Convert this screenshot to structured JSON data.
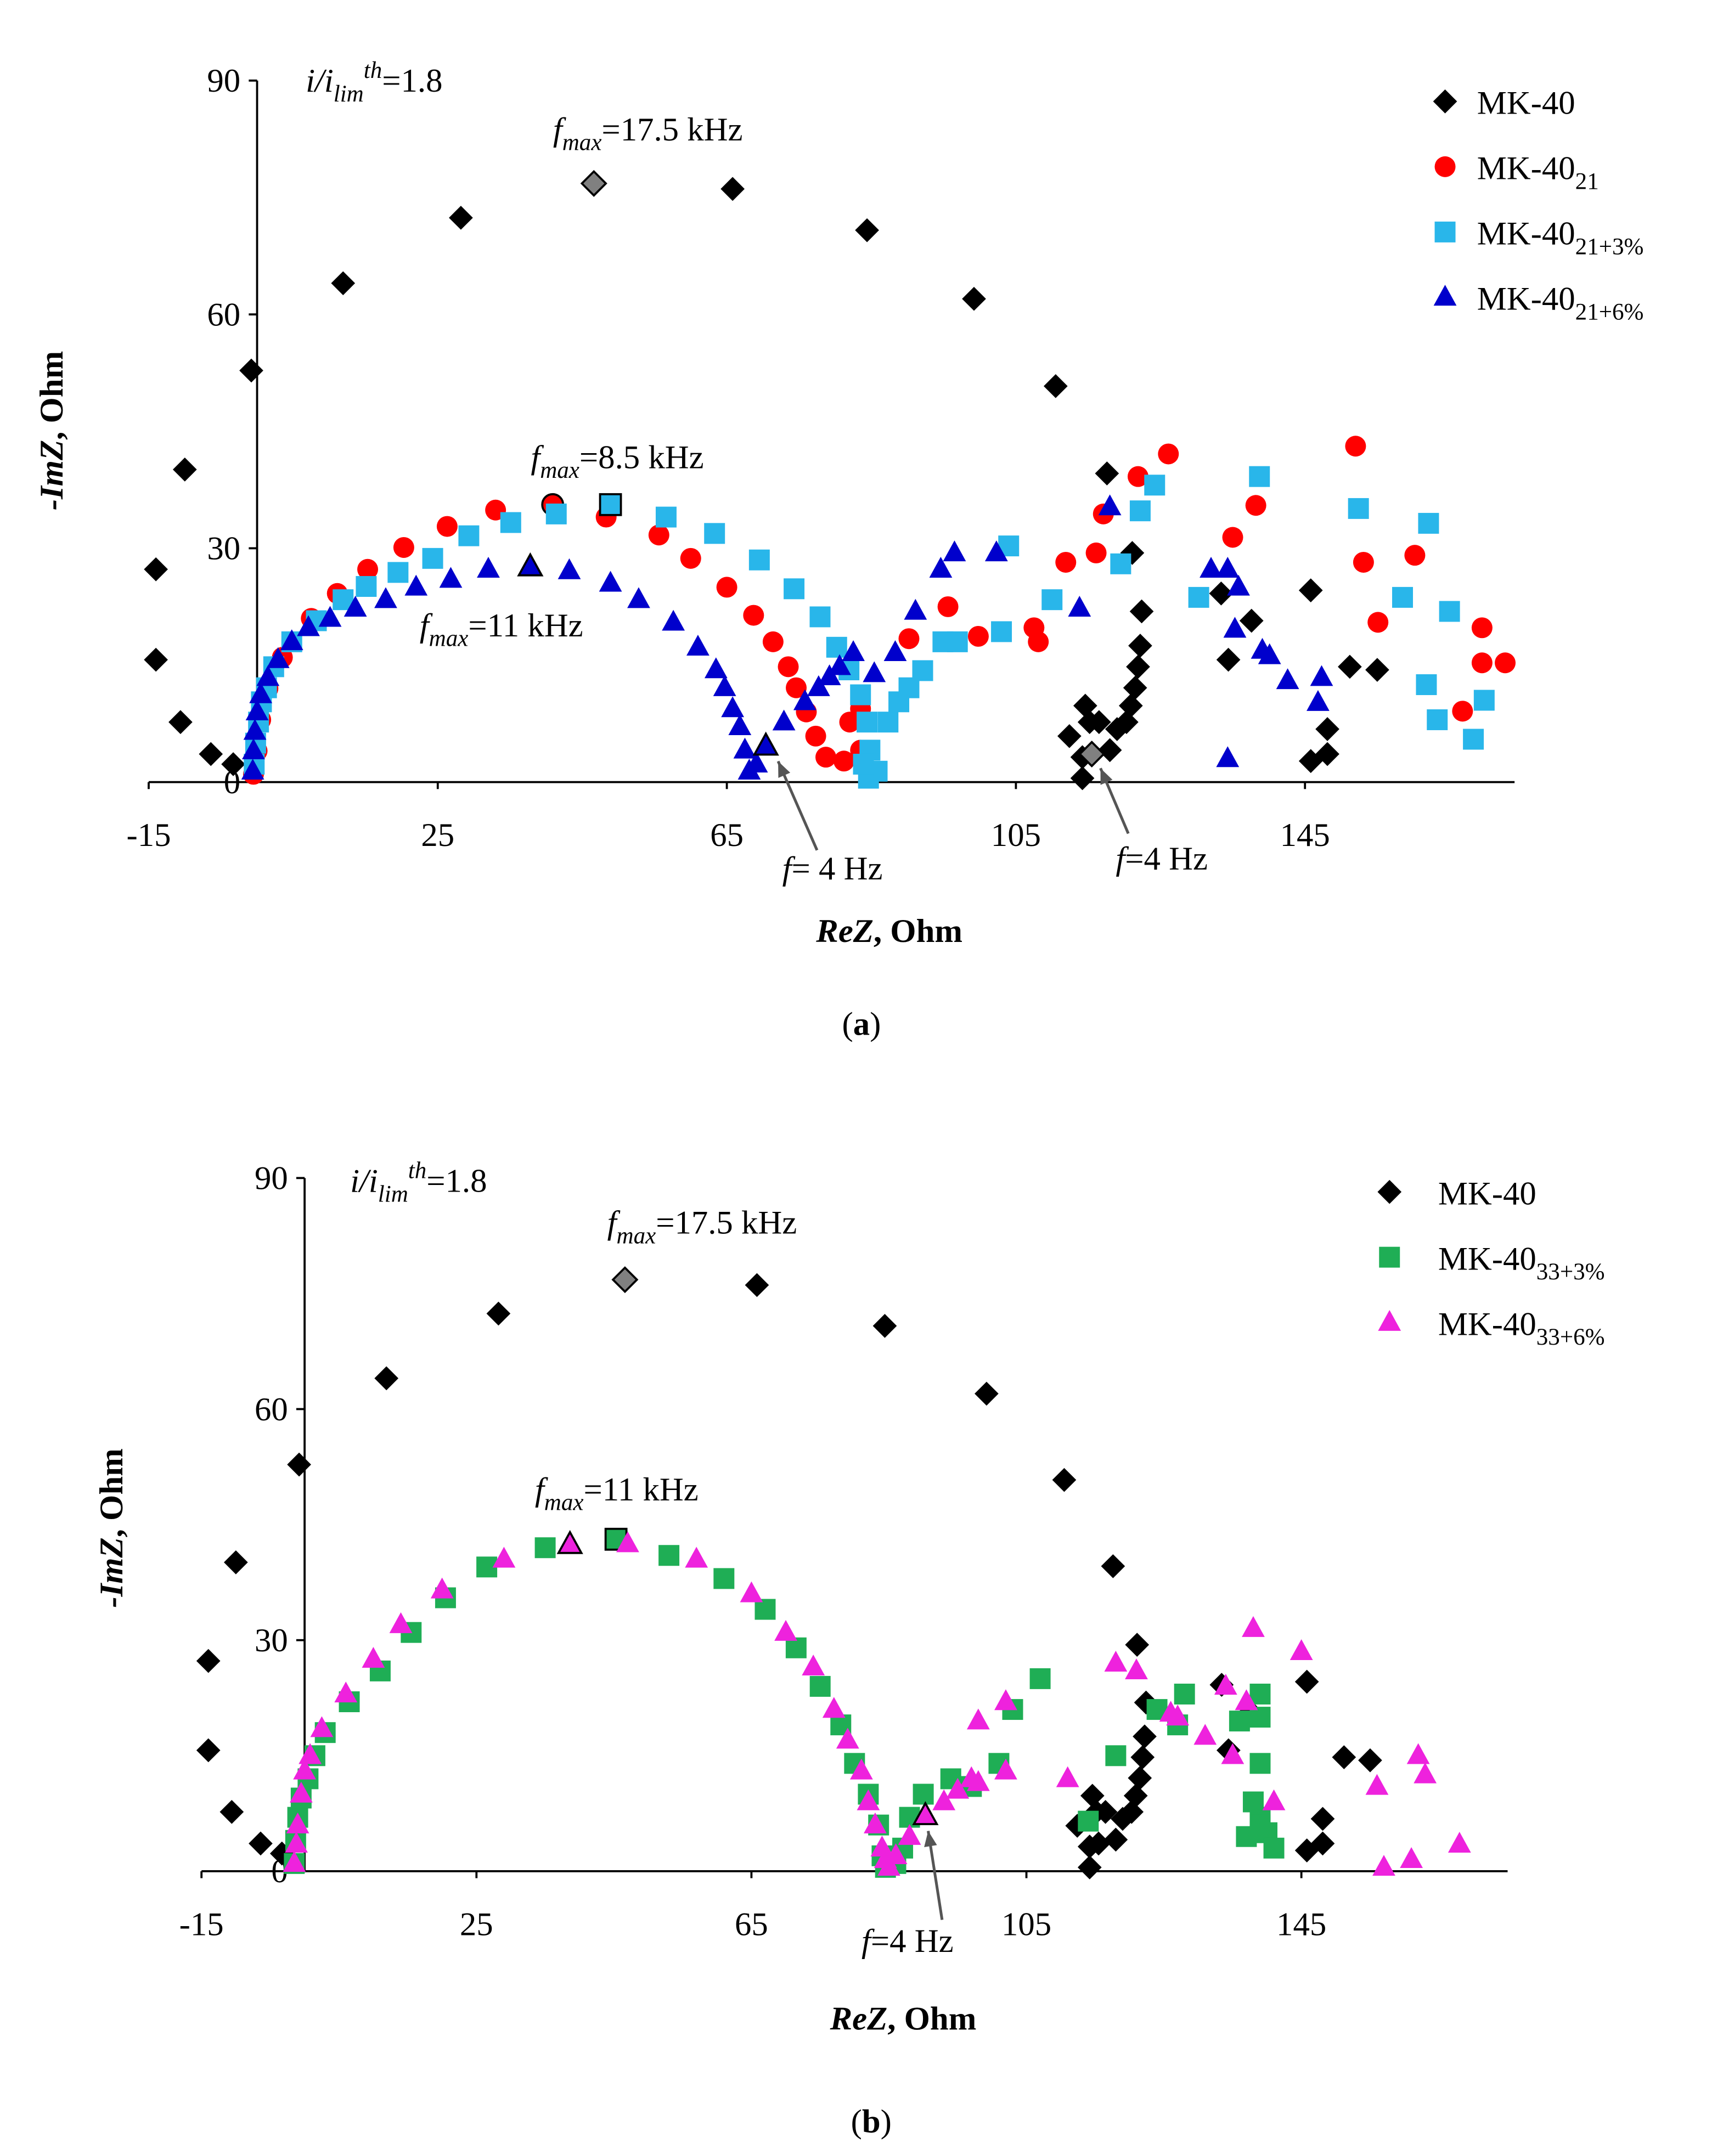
{
  "chart_data": [
    {
      "type": "scatter",
      "panel": [
        {
          "text": "("
        },
        {
          "text": "a",
          "style": "bold"
        },
        {
          "text": ")"
        }
      ],
      "x_label": [
        {
          "text": "ReZ",
          "style": "bold italic"
        },
        {
          "text": ", Ohm",
          "style": "bold"
        }
      ],
      "y_label": [
        {
          "text": "-ImZ",
          "style": "bold italic"
        },
        {
          "text": ", Ohm",
          "style": "bold"
        }
      ],
      "xlim": [
        -15,
        174
      ],
      "ylim": [
        0,
        90
      ],
      "xticks": [
        -15,
        25,
        65,
        105,
        145
      ],
      "yticks": [
        0,
        30,
        60,
        90
      ],
      "legend": "upper right",
      "annotations": [
        [
          {
            "text": "i/i",
            "style": "italic"
          },
          {
            "text": "lim",
            "style": "italic sub"
          },
          {
            "text": "th",
            "style": "italic sup"
          },
          {
            "text": "=1.8"
          }
        ],
        [
          {
            "text": "f",
            "style": "italic"
          },
          {
            "text": "max",
            "style": "italic sub"
          },
          {
            "text": "=17.5 kHz"
          }
        ],
        [
          {
            "text": "f",
            "style": "italic"
          },
          {
            "text": "max",
            "style": "italic sub"
          },
          {
            "text": "=8.5 kHz"
          }
        ],
        [
          {
            "text": "f",
            "style": "italic"
          },
          {
            "text": "max",
            "style": "italic sub"
          },
          {
            "text": "=11 kHz"
          }
        ],
        [
          {
            "text": "f",
            "style": "italic"
          },
          {
            "text": "= 4 Hz"
          }
        ],
        [
          {
            "text": "f",
            "style": "italic"
          },
          {
            "text": "=4 Hz"
          }
        ]
      ],
      "series": [
        {
          "name": "MK-40",
          "name_sub": null,
          "color": "#000000",
          "marker": "diamond",
          "highlight": [
            9,
            30
          ],
          "highlight_color": "#808080",
          "x": [
            -14.0,
            -14.0,
            -10.6,
            -10.0,
            -6.4,
            -3.3,
            -0.8,
            11.9,
            28.2,
            46.6,
            65.8,
            84.4,
            99.2,
            110.5,
            117.6,
            121.1,
            122.4,
            122.2,
            121.9,
            121.5,
            120.9,
            120.3,
            119.0,
            118.0,
            116.5,
            115.2,
            114.6,
            112.4,
            114.2,
            114.2,
            115.5,
            133.4,
            134.4,
            137.6,
            145.8,
            148.1,
            145.8,
            148.1,
            151.2,
            155.0
          ],
          "values": [
            27.3,
            15.7,
            7.7,
            40.1,
            3.6,
            2.3,
            52.8,
            64.0,
            72.4,
            76.8,
            76.1,
            70.8,
            62.0,
            50.8,
            39.6,
            29.4,
            21.9,
            17.5,
            14.8,
            12.1,
            9.8,
            7.7,
            6.8,
            4.1,
            7.7,
            7.7,
            9.8,
            5.9,
            3.2,
            0.5,
            3.6,
            24.2,
            15.7,
            20.7,
            24.6,
            6.8,
            2.7,
            3.6,
            14.8,
            14.4
          ]
        },
        {
          "name": "MK-40",
          "name_sub": "21",
          "color": "#ff0000",
          "marker": "circle",
          "highlight": [
            11
          ],
          "x": [
            -0.5,
            0,
            0.5,
            1.5,
            3.5,
            7.5,
            11.1,
            15.3,
            20.3,
            26.3,
            33.0,
            40.9,
            48.3,
            55.6,
            60.0,
            65.0,
            68.7,
            71.4,
            73.5,
            74.6,
            76.0,
            77.3,
            78.7,
            81.2,
            83.5,
            82.0,
            83.5,
            90.2,
            95.6,
            99.8,
            107.5,
            108.1,
            111.9,
            116.1,
            117.1,
            121.9,
            126.1,
            135.0,
            138.2,
            152.0,
            153.1,
            155.1,
            160.2,
            166.8,
            169.5,
            169.5,
            172.7
          ],
          "values": [
            1,
            4,
            8,
            12,
            16,
            21,
            24.2,
            27.3,
            30.1,
            32.8,
            34.9,
            35.6,
            34,
            31.7,
            28.7,
            25,
            21.4,
            18,
            14.8,
            12.1,
            9,
            5.9,
            3.2,
            2.7,
            4.1,
            7.7,
            9.4,
            18.4,
            22.5,
            18.7,
            19.8,
            18.0,
            28.2,
            29.4,
            34.4,
            39.2,
            42.1,
            31.4,
            35.5,
            43.1,
            28.2,
            20.5,
            29.1,
            9.1,
            19.8,
            15.3,
            15.3
          ]
        },
        {
          "name": "MK-40",
          "name_sub": "21+3%",
          "color": "#29b6ea",
          "marker": "square",
          "highlight": [
            15
          ],
          "x": [
            -0.4,
            -0.2,
            0.2,
            0.6,
            1.3,
            2.3,
            4.8,
            8.2,
            11.9,
            15.1,
            19.5,
            24.3,
            29.3,
            35.1,
            41.4,
            48.9,
            56.6,
            63.3,
            69.5,
            74.3,
            77.9,
            80.2,
            81.9,
            83.5,
            84.4,
            84.8,
            84.6,
            85.8,
            83.9,
            87.3,
            88.8,
            90.2,
            92.1,
            94.9,
            96.9,
            104,
            103,
            110,
            119.5,
            122.2,
            124.2,
            130.3,
            138.7,
            152.4,
            158.5,
            162.1,
            161.8,
            163.3,
            165,
            168.3,
            169.8
          ],
          "values": [
            2.3,
            5,
            7.7,
            10.3,
            12.1,
            14.8,
            18,
            20.7,
            23.4,
            25.1,
            26.9,
            28.7,
            31.6,
            33.3,
            34.4,
            35.6,
            34,
            31.9,
            28.5,
            24.8,
            21.2,
            17.3,
            14.4,
            11.2,
            7.7,
            4.1,
            0.5,
            1.4,
            2.3,
            7.7,
            10.3,
            12.1,
            14.3,
            18,
            18,
            30.3,
            19.3,
            23.4,
            28,
            34.8,
            38.1,
            23.7,
            39.2,
            35.1,
            23.7,
            33.2,
            12.5,
            8,
            21.9,
            5.5,
            10.5
          ]
        },
        {
          "name": "MK-40",
          "name_sub": "21+6%",
          "color": "#0000cc",
          "marker": "triangle",
          "highlight": [
            15,
            28
          ],
          "x": [
            -0.6,
            -0.5,
            -0.3,
            0,
            0.5,
            1.5,
            2.9,
            4.8,
            7.1,
            10.1,
            13.6,
            17.8,
            22,
            26.8,
            32,
            37.8,
            43.2,
            48.9,
            52.8,
            57.6,
            61,
            63.5,
            64.7,
            65.8,
            66.8,
            67.5,
            68.1,
            69.1,
            70.4,
            72.9,
            75.8,
            77.7,
            79.2,
            80.6,
            82.5,
            85.4,
            88.3,
            91.1,
            94.6,
            96.5,
            102.3,
            113.8,
            118,
            132,
            134.3,
            135.8,
            139.1,
            140.1,
            142.6,
            146.8,
            147.3,
            134.3,
            135.3
          ],
          "values": [
            1.4,
            4,
            6.5,
            9,
            11.2,
            13.4,
            15.7,
            18,
            19.8,
            21,
            22.3,
            23.4,
            25,
            26,
            27.3,
            27.6,
            27.1,
            25.5,
            23.4,
            20.5,
            17.3,
            14.4,
            12.1,
            9.4,
            7.1,
            4.1,
            1.4,
            2.3,
            4.6,
            7.7,
            10.3,
            12.1,
            13.5,
            14.8,
            16.6,
            13.9,
            16.6,
            21.9,
            27.3,
            29.4,
            29.4,
            22.3,
            35.3,
            27.3,
            27.3,
            25,
            16.9,
            16.2,
            13,
            10.2,
            13.4,
            3,
            19.6
          ]
        }
      ]
    },
    {
      "type": "scatter",
      "panel": [
        {
          "text": "("
        },
        {
          "text": "b",
          "style": "bold"
        },
        {
          "text": ")"
        }
      ],
      "x_label": [
        {
          "text": "ReZ",
          "style": "bold italic"
        },
        {
          "text": ", Ohm",
          "style": "bold"
        }
      ],
      "y_label": [
        {
          "text": "-ImZ",
          "style": "bold italic"
        },
        {
          "text": ", Ohm",
          "style": "bold"
        }
      ],
      "xlim": [
        -15,
        175
      ],
      "ylim": [
        0,
        90
      ],
      "xticks": [
        -15,
        25,
        65,
        105,
        145
      ],
      "yticks": [
        0,
        30,
        60,
        90
      ],
      "legend": "upper right",
      "annotations": [
        [
          {
            "text": "i/i",
            "style": "italic"
          },
          {
            "text": "lim",
            "style": "italic sub"
          },
          {
            "text": "th",
            "style": "italic sup"
          },
          {
            "text": "=1.8"
          }
        ],
        [
          {
            "text": "f",
            "style": "italic"
          },
          {
            "text": "max",
            "style": "italic sub"
          },
          {
            "text": "=17.5 kHz"
          }
        ],
        [
          {
            "text": "f",
            "style": "italic"
          },
          {
            "text": "max",
            "style": "italic sub"
          },
          {
            "text": "=11 kHz"
          }
        ],
        [
          {
            "text": "f",
            "style": "italic"
          },
          {
            "text": "=4 Hz"
          }
        ]
      ],
      "series": [
        {
          "name": "MK-40",
          "name_sub": null,
          "color": "#000000",
          "marker": "diamond",
          "highlight": [
            9
          ],
          "highlight_color": "#808080",
          "x": [
            -14.0,
            -14.0,
            -10.6,
            -10.0,
            -6.4,
            -3.3,
            -0.8,
            11.9,
            28.2,
            46.6,
            65.8,
            84.4,
            99.2,
            110.5,
            117.6,
            121.1,
            122.4,
            122.2,
            121.9,
            121.5,
            120.9,
            120.3,
            119.0,
            118.0,
            116.5,
            115.2,
            114.6,
            112.4,
            114.2,
            114.2,
            115.5,
            133.4,
            134.4,
            137.6,
            145.8,
            148.1,
            145.8,
            148.1,
            151.2,
            155.0
          ],
          "values": [
            27.3,
            15.7,
            7.7,
            40.1,
            3.6,
            2.3,
            52.8,
            64.0,
            72.4,
            76.8,
            76.1,
            70.8,
            62.0,
            50.8,
            39.6,
            29.4,
            21.9,
            17.5,
            14.8,
            12.1,
            9.8,
            7.7,
            6.8,
            4.1,
            7.7,
            7.7,
            9.8,
            5.9,
            3.2,
            0.5,
            3.6,
            24.2,
            15.7,
            20.7,
            24.6,
            6.8,
            2.7,
            3.6,
            14.8,
            14.4
          ]
        },
        {
          "name": "MK-40",
          "name_sub": "33+3%",
          "color": "#1fae55",
          "marker": "square",
          "highlight": [
            13
          ],
          "x": [
            -1.5,
            -1.3,
            -1,
            -0.5,
            0.5,
            1.5,
            3,
            6.5,
            11,
            15.5,
            20.5,
            26.5,
            35,
            45.3,
            53,
            61,
            67,
            71.5,
            75,
            78,
            80,
            82,
            83.5,
            84,
            84.5,
            86,
            87,
            88,
            90,
            94,
            97,
            101,
            103,
            107,
            114,
            118,
            124,
            127,
            128,
            136,
            139,
            139,
            139,
            138,
            139,
            139,
            137,
            140,
            141
          ],
          "values": [
            1,
            4,
            7,
            9.5,
            12,
            15,
            18,
            22,
            26,
            31,
            35.5,
            39.5,
            42,
            43.1,
            41,
            38,
            34,
            29,
            24,
            19,
            14,
            10,
            6,
            2,
            0.5,
            1,
            3,
            7,
            10,
            12,
            11,
            14,
            21,
            25,
            6.5,
            15,
            21,
            19,
            23,
            19.5,
            23,
            20,
            14,
            9,
            7,
            6,
            4.5,
            5,
            3
          ]
        },
        {
          "name": "MK-40",
          "name_sub": "33+6%",
          "color": "#ee22dd",
          "marker": "triangle",
          "highlight": [
            12,
            28
          ],
          "x": [
            -1.5,
            -1.2,
            -1,
            -0.5,
            0,
            0.8,
            2.5,
            6,
            10,
            14,
            20,
            29,
            38.6,
            47,
            57,
            65,
            70,
            74,
            77,
            79,
            81,
            82,
            83,
            84,
            84.5,
            85,
            86,
            88,
            90.3,
            93,
            95,
            97,
            98,
            102,
            102,
            98,
            111,
            118,
            121,
            127,
            131,
            134,
            135,
            138,
            141,
            145,
            156,
            157,
            162,
            163,
            161,
            168,
            137,
            126
          ],
          "values": [
            1,
            3.5,
            6,
            10,
            13,
            15,
            18.5,
            23,
            27.5,
            32,
            36.5,
            40.5,
            42.4,
            42.5,
            40.5,
            36,
            31,
            26.5,
            21,
            17,
            13,
            9,
            6,
            3,
            1.5,
            0.5,
            2,
            4.5,
            7.2,
            9,
            10.5,
            12,
            19.5,
            22,
            13,
            11.5,
            12,
            27,
            26,
            20,
            17.5,
            24,
            15,
            31.5,
            9,
            28.5,
            11,
            0.5,
            15,
            12.5,
            1.5,
            3.5,
            22,
            20.5
          ]
        }
      ]
    }
  ]
}
